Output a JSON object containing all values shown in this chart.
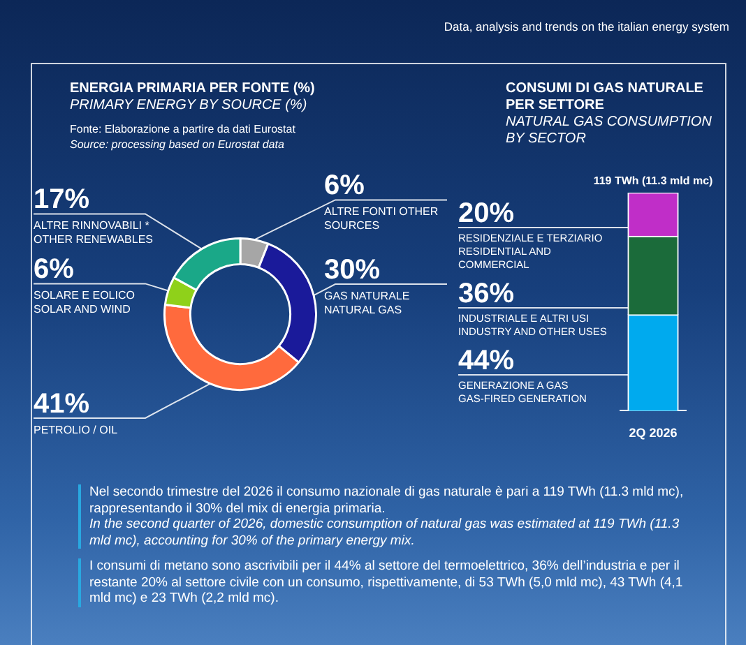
{
  "chart_data": [
    {
      "type": "donut",
      "title": "ENERGIA PRIMARIA PER FONTE (%)",
      "subtitle": "PRIMARY ENERGY BY SOURCE (%)",
      "annotations": [
        "Fonte: Elaborazione a partire da dati Eurostat",
        "Source: processing based on Eurostat data"
      ],
      "categories": [
        "ALTRE FONTI OTHER SOURCES",
        "GAS NATURALE NATURAL GAS",
        "PETROLIO / OIL",
        "SOLARE E EOLICO SOLAR AND WIND",
        "ALTRE RINNOVABILI * OTHER RENEWABLES"
      ],
      "values": [
        6,
        30,
        41,
        6,
        17
      ],
      "colors": [
        "#a6a6a6",
        "#1a1a9a",
        "#ff6a3d",
        "#8fd11a",
        "#1aa888"
      ],
      "value_labels": [
        "6%",
        "30%",
        "41%",
        "6%",
        "17%"
      ]
    },
    {
      "type": "bar",
      "title": "CONSUMI DI GAS NATURALE PER SETTORE",
      "subtitle": "NATURAL GAS CONSUMPTION BY SECTOR",
      "stacked": true,
      "categories": [
        "2Q 2026"
      ],
      "series": [
        {
          "name": "GENERAZIONE A GAS GAS-FIRED GENERATION",
          "color": "#00aaee",
          "values": [
            44
          ],
          "value_labels": [
            "44%"
          ]
        },
        {
          "name": "INDUSTRIALE E ALTRI USI INDUSTRY AND OTHER USES",
          "color": "#1b6b3a",
          "values": [
            36
          ],
          "value_labels": [
            "36%"
          ]
        },
        {
          "name": "RESIDENZIALE E TERZIARIO RESIDENTIAL AND COMMERCIAL",
          "color": "#c02ec8",
          "values": [
            20
          ],
          "value_labels": [
            "20%"
          ]
        }
      ],
      "totals": [
        "119 TWh (11.3 mld mc)"
      ]
    },
    {
      "type": "other",
      "title": "Data, analysis and trends on the italian energy system",
      "annotations": [
        "Nel secondo trimestre del 2026 il consumo nazionale di gas naturale è pari a 119 TWh (11.3 mld mc), rappresentando il 30% del mix di energia primaria.",
        "In the second quarter of 2026, domestic consumption of natural gas was estimated at 119 TWh (11.3 mld mc), accounting for 30% of the primary energy mix.",
        "I consumi di metano sono ascrivibili per il 44% al settore del termoelettrico, 36% dell’industria e per il restante 20% al settore civile con un consumo, rispettivamente, di 53 TWh (5,0 mld mc), 43 TWh (4,1 mld mc) e 23 TWh (2,2 mld mc)."
      ]
    }
  ]
}
